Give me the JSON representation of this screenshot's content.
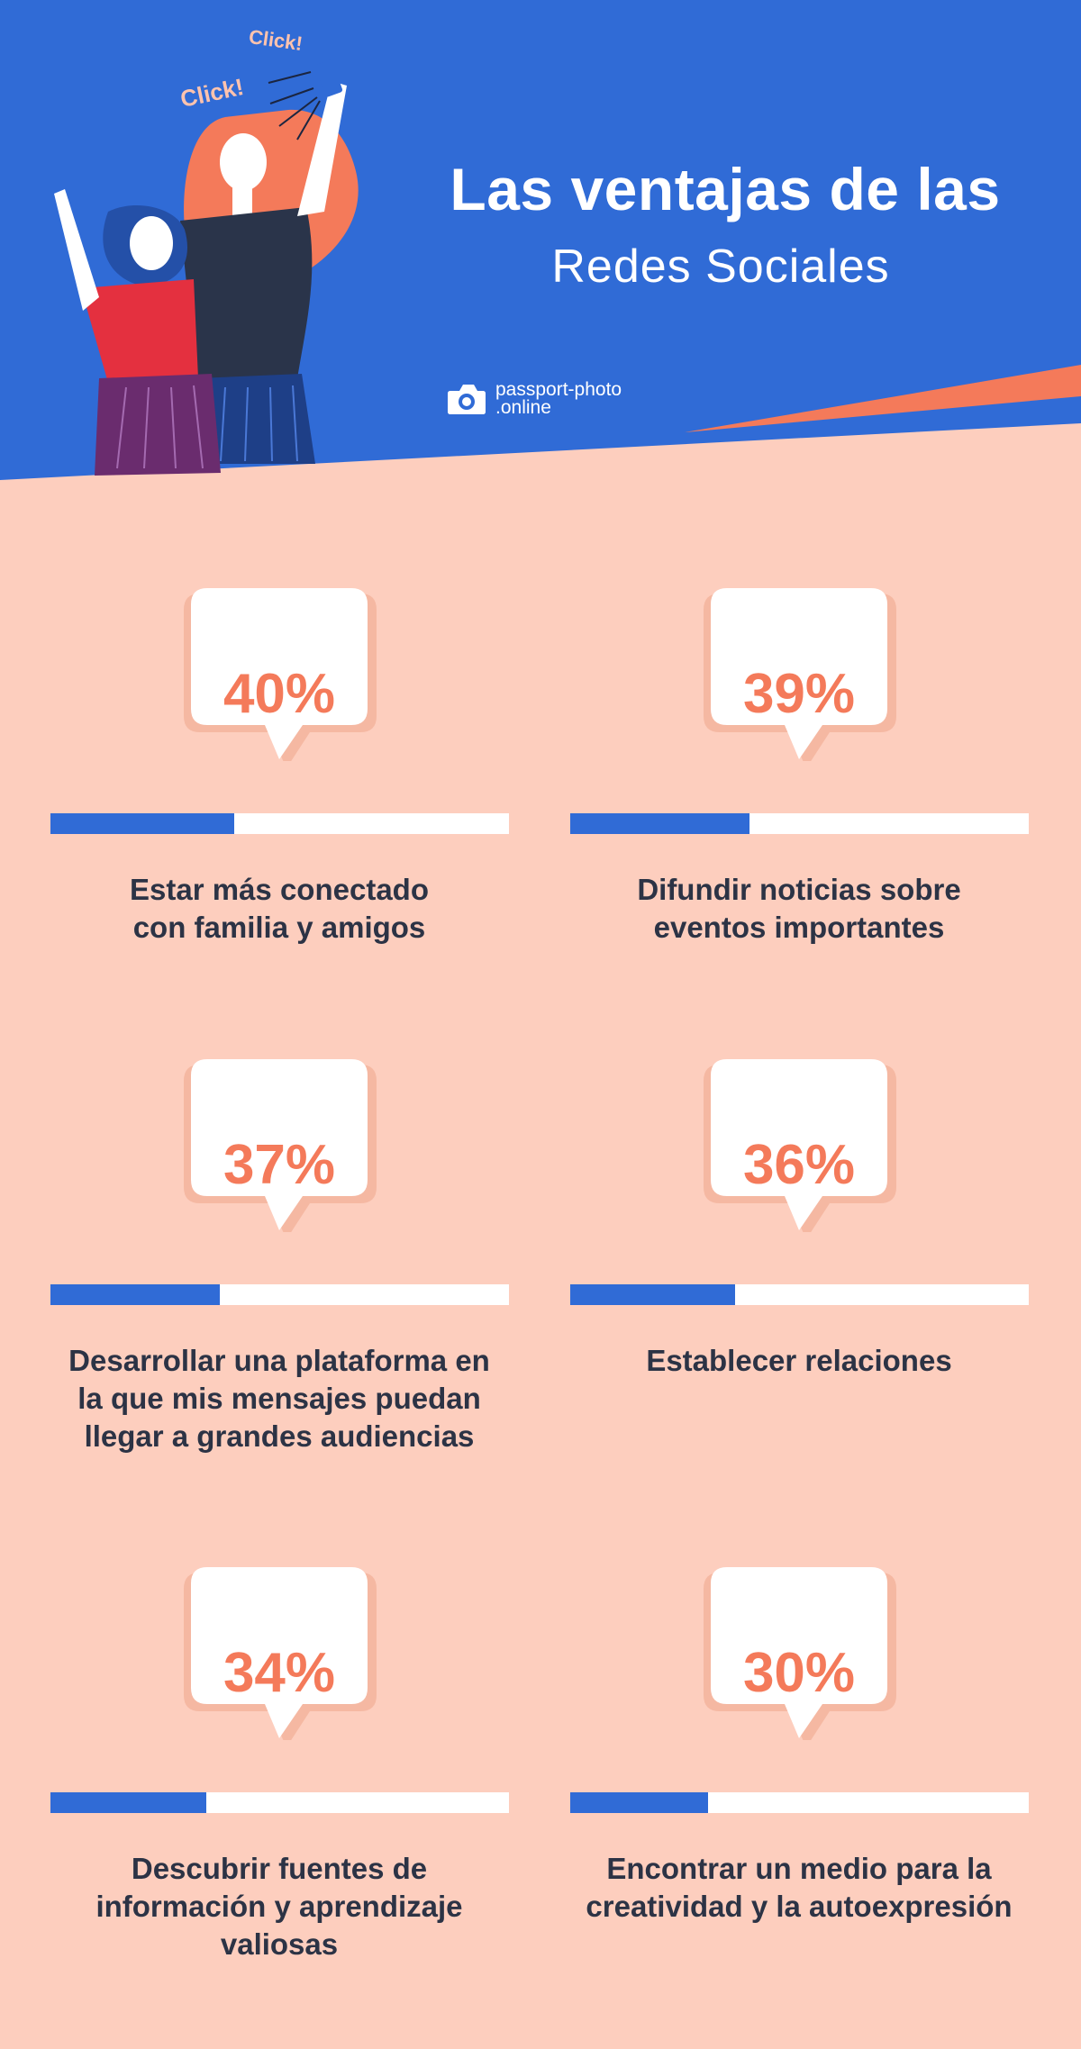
{
  "header": {
    "title": "Las ventajas de las",
    "subtitle": "Redes Sociales",
    "brand_line1": "passport-photo",
    "brand_line2": ".online",
    "click_1": "Click!",
    "click_2": "Click!"
  },
  "colors": {
    "header_blue": "#306BD6",
    "background_peach": "#FDCEBE",
    "accent_coral": "#F47A5A",
    "bar_blue": "#306BD6",
    "text_dark": "#2C3345"
  },
  "chart_data": {
    "type": "bar",
    "categories": [
      "Estar más conectado con familia y amigos",
      "Difundir noticias sobre eventos importantes",
      "Desarrollar una plataforma en la que mis mensajes puedan llegar a grandes audiencias",
      "Establecer relaciones",
      "Descubrir fuentes de información y aprendizaje valiosas",
      "Encontrar un medio para la creatividad y la autoexpresión"
    ],
    "values": [
      40,
      39,
      37,
      36,
      34,
      30
    ],
    "unit": "%",
    "ylim": [
      0,
      100
    ],
    "title": "Las ventajas de las Redes Sociales",
    "xlabel": "",
    "ylabel": ""
  },
  "stats": [
    {
      "percent": "40%",
      "label_lines": [
        "Estar más conectado",
        "con familia y amigos"
      ]
    },
    {
      "percent": "39%",
      "label_lines": [
        "Difundir noticias sobre",
        "eventos importantes"
      ]
    },
    {
      "percent": "37%",
      "label_lines": [
        "Desarrollar una plataforma en",
        "la que mis mensajes puedan",
        "llegar a grandes audiencias"
      ]
    },
    {
      "percent": "36%",
      "label_lines": [
        "Establecer relaciones"
      ]
    },
    {
      "percent": "34%",
      "label_lines": [
        "Descubrir fuentes de",
        "información y aprendizaje",
        "valiosas"
      ]
    },
    {
      "percent": "30%",
      "label_lines": [
        "Encontrar un medio para la",
        "creatividad y la autoexpresión"
      ]
    }
  ]
}
